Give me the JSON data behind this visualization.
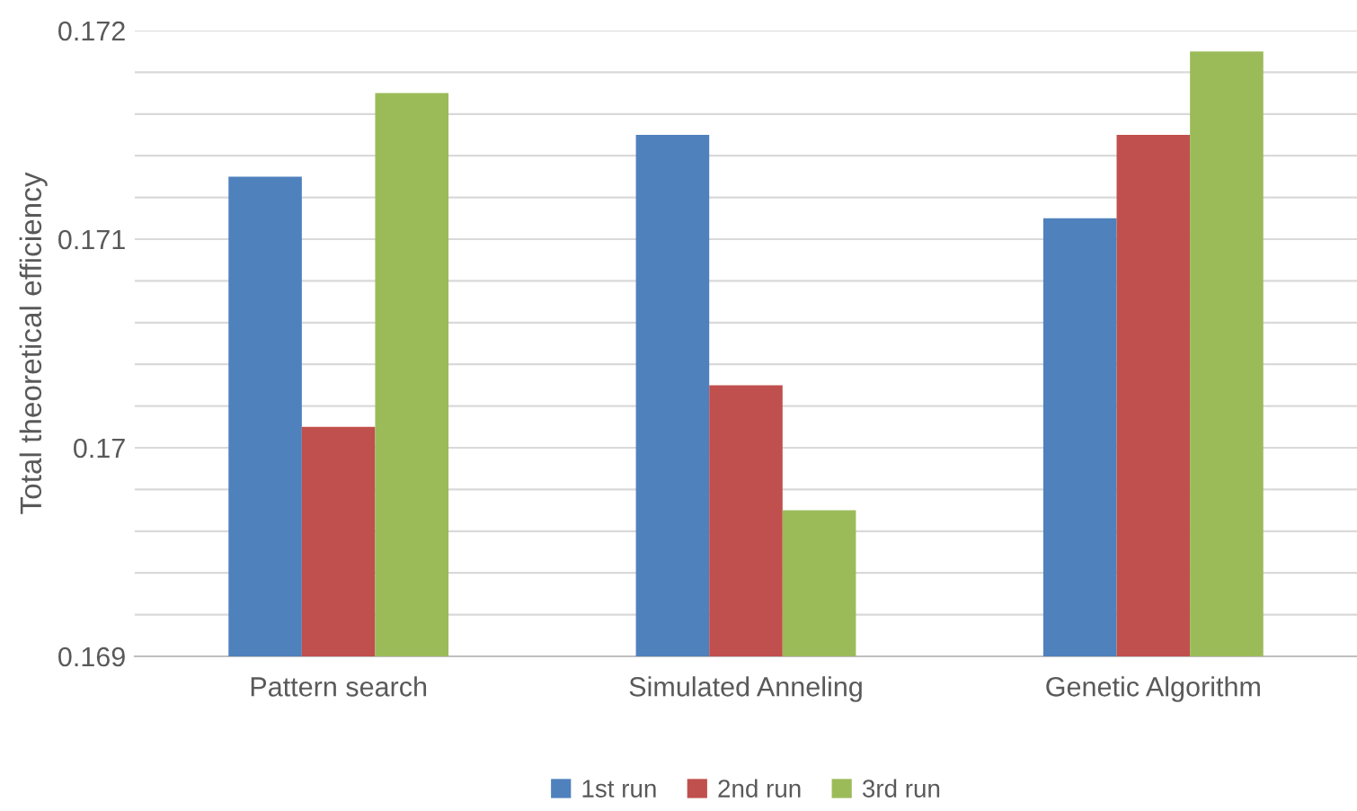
{
  "chart_data": {
    "type": "bar",
    "ylabel": "Total theoretical efficiency",
    "categories": [
      "Pattern search",
      "Simulated Anneling",
      "Genetic Algorithm"
    ],
    "series": [
      {
        "name": "1st run",
        "color": "#4f81bd",
        "values": [
          0.1713,
          0.1715,
          0.1711
        ]
      },
      {
        "name": "2nd run",
        "color": "#c0504d",
        "values": [
          0.1701,
          0.1703,
          0.1715
        ]
      },
      {
        "name": "3rd run",
        "color": "#9bbb59",
        "values": [
          0.1717,
          0.1697,
          0.1719
        ]
      }
    ],
    "ylim": [
      0.169,
      0.172
    ],
    "yticks": [
      0.169,
      {
        "value": 0.1692,
        "label": null
      },
      {
        "value": 0.1694,
        "label": null
      },
      {
        "value": 0.1696,
        "label": null
      },
      {
        "value": 0.1698,
        "label": null
      },
      0.17,
      {
        "value": 0.1702,
        "label": null
      },
      {
        "value": 0.1704,
        "label": null
      },
      {
        "value": 0.1706,
        "label": null
      },
      {
        "value": 0.1708,
        "label": null
      },
      0.171,
      {
        "value": 0.1712,
        "label": null
      },
      {
        "value": 0.1714,
        "label": null
      },
      {
        "value": 0.1716,
        "label": null
      },
      {
        "value": 0.1718,
        "label": null
      },
      0.172
    ],
    "grid": "y",
    "legend": "bottom"
  }
}
